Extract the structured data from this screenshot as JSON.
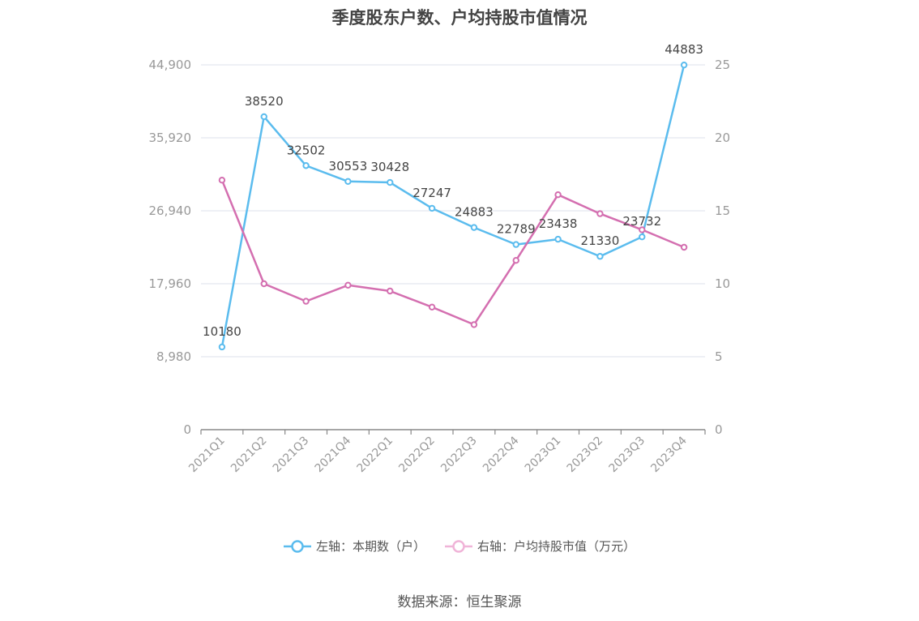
{
  "chart_data": {
    "type": "line",
    "title": "季度股东户数、户均持股市值情况",
    "categories": [
      "2021Q1",
      "2021Q2",
      "2021Q3",
      "2021Q4",
      "2022Q1",
      "2022Q2",
      "2022Q3",
      "2022Q4",
      "2023Q1",
      "2023Q2",
      "2023Q3",
      "2023Q4"
    ],
    "series": [
      {
        "name": "左轴：本期数（户）",
        "axis": "left",
        "color": "#5bbcee",
        "values": [
          10180,
          38520,
          32502,
          30553,
          30428,
          27247,
          24883,
          22789,
          23438,
          21330,
          23732,
          44883
        ],
        "labels": [
          "10180",
          "38520",
          "32502",
          "30553",
          "30428",
          "27247",
          "24883",
          "22789",
          "23438",
          "21330",
          "23732",
          "44883"
        ]
      },
      {
        "name": "右轴：户均持股市值（万元）",
        "axis": "right",
        "color": "#d46fb0",
        "values": [
          17.1,
          10.0,
          8.8,
          9.9,
          9.5,
          8.4,
          7.2,
          11.6,
          16.1,
          14.8,
          13.7,
          12.5
        ]
      }
    ],
    "left_axis": {
      "ticks": [
        "0",
        "8,980",
        "17,960",
        "26,940",
        "35,920",
        "44,900"
      ],
      "tick_values": [
        0,
        8980,
        17960,
        26940,
        35920,
        44900
      ],
      "ylim": [
        0,
        44900
      ]
    },
    "right_axis": {
      "ticks": [
        "0",
        "5",
        "10",
        "15",
        "20",
        "25"
      ],
      "tick_values": [
        0,
        5,
        10,
        15,
        20,
        25
      ],
      "ylim": [
        0,
        25
      ]
    },
    "grid": true,
    "legend_position": "bottom"
  },
  "source": "数据来源：恒生聚源"
}
